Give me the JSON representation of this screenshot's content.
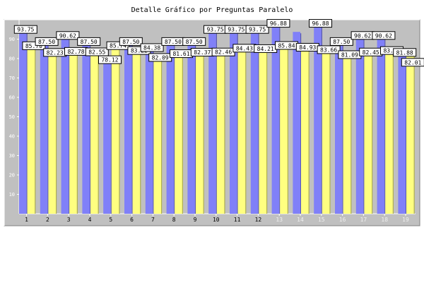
{
  "chart_data": {
    "type": "bar",
    "title": "Detalle Gráfico por Preguntas Paralelo",
    "xlabel": "",
    "ylabel": "",
    "categories": [
      "1",
      "2",
      "3",
      "4",
      "5",
      "6",
      "7",
      "8",
      "9",
      "10",
      "11",
      "12",
      "13",
      "14",
      "15",
      "16",
      "17",
      "18",
      "19"
    ],
    "series": [
      {
        "color": "#8080f8",
        "values": [
          93.75,
          87.5,
          90.62,
          87.5,
          78.12,
          87.5,
          84.38,
          87.5,
          87.5,
          93.75,
          93.75,
          93.75,
          96.88,
          93.75,
          96.88,
          87.5,
          90.62,
          90.62,
          81.88
        ]
      },
      {
        "color": "#ffff80",
        "values": [
          85.7,
          82.23,
          82.78,
          82.55,
          85.74,
          83.22,
          82.09,
          81.61,
          82.37,
          82.46,
          84.43,
          84.21,
          85.84,
          84.93,
          83.66,
          81.09,
          82.45,
          83.22,
          82.01
        ]
      }
    ],
    "value_labels": [
      [
        "93.75",
        "87.50",
        "90.62",
        "87.50",
        "78.12",
        "87.50",
        "84.38",
        "87.50",
        "87.50",
        "93.75",
        "93.75",
        "93.75",
        "96.88",
        "",
        "96.88",
        "87.50",
        "90.62",
        "90.62",
        "81.88"
      ],
      [
        "85.70",
        "82.23",
        "82.78",
        "82.55",
        "85.74",
        "83.22",
        "82.09",
        "81.61",
        "82.37",
        "82.46",
        "84.43",
        "84.21",
        "85.84",
        "84.93",
        "83.66",
        "81.09",
        "82.45",
        "83.22",
        "82.01"
      ]
    ],
    "ylim": [
      0,
      100
    ],
    "yticks": [
      10,
      20,
      30,
      40,
      50,
      60,
      70,
      80,
      90
    ],
    "grid": false,
    "legend": "none",
    "colors": {
      "plot_background": "#c0c0c0",
      "axis_lines": "#ffffff",
      "tick_text": "#ffffff",
      "dim_tick_text": "#f0f0f0"
    }
  }
}
